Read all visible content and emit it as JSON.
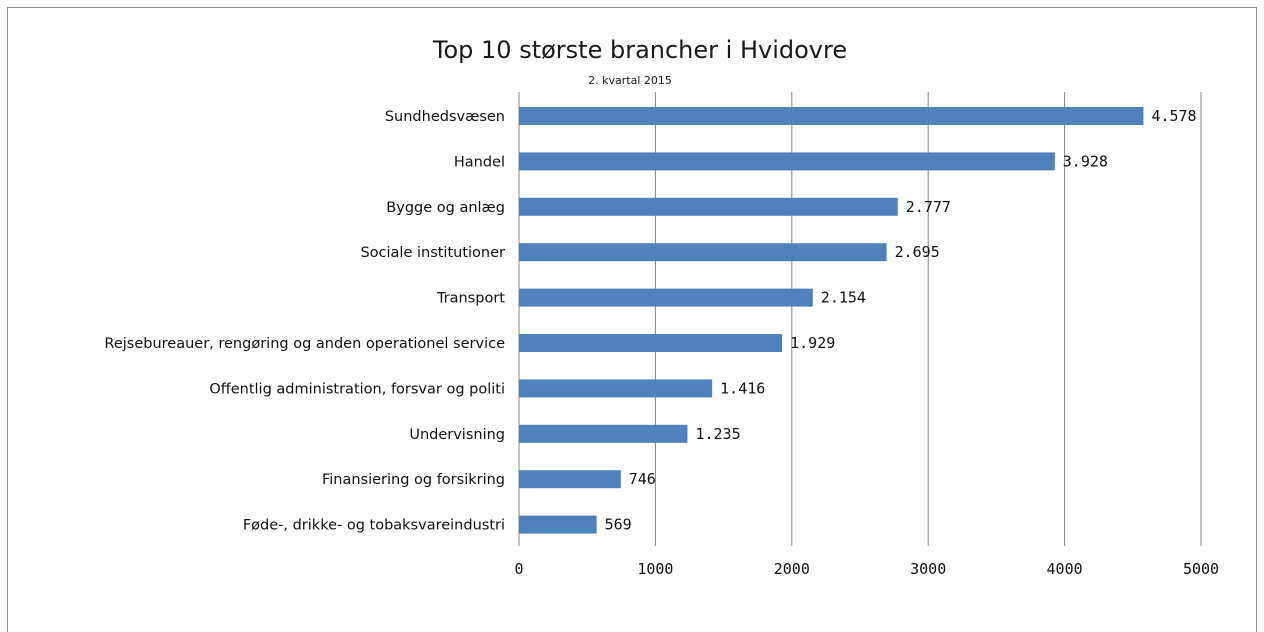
{
  "chart_data": {
    "type": "bar",
    "orientation": "horizontal",
    "title": "Top 10 største brancher i Hvidovre",
    "subtitle": "2. kvartal 2015",
    "categories": [
      "Sundhedsvæsen",
      "Handel",
      "Bygge og anlæg",
      "Sociale institutioner",
      "Transport",
      "Rejsebureauer, rengøring og anden operationel service",
      "Offentlig administration, forsvar og politi",
      "Undervisning",
      "Finansiering og forsikring",
      "Føde-, drikke- og tobaksvareindustri"
    ],
    "values": [
      4578,
      3928,
      2777,
      2695,
      2154,
      1929,
      1416,
      1235,
      746,
      569
    ],
    "value_labels": [
      "4.578",
      "3.928",
      "2.777",
      "2.695",
      "2.154",
      "1.929",
      "1.416",
      "1.235",
      "746",
      "569"
    ],
    "xlim": [
      0,
      5000
    ],
    "xticks": [
      0,
      1000,
      2000,
      3000,
      4000,
      5000
    ],
    "xtick_labels": [
      "0",
      "1000",
      "2000",
      "3000",
      "4000",
      "5000"
    ],
    "xlabel": "",
    "ylabel": "",
    "grid": "vertical",
    "legend": "none",
    "bar_color": "#4f81bd",
    "grid_color": "#868686"
  }
}
